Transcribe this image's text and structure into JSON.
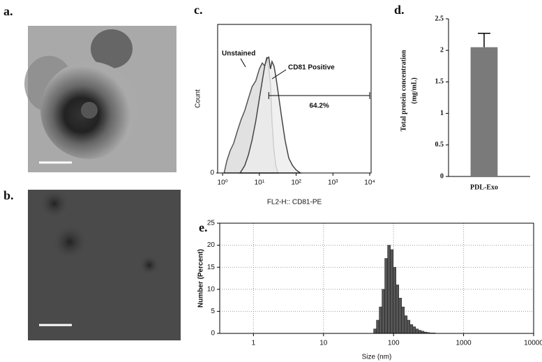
{
  "panel_labels": [
    "a.",
    "b.",
    "c.",
    "d.",
    "e."
  ],
  "chart_data": [
    {
      "type": "line",
      "xscale": "log",
      "xlabel": "FL2-H:: CD81-PE",
      "ylabel": "Count",
      "xlim": [
        0.8,
        10000
      ],
      "xticks": [
        {
          "value": 1,
          "label": "10⁰"
        },
        {
          "value": 10,
          "label": "10¹"
        },
        {
          "value": 100,
          "label": "10²"
        },
        {
          "value": 1000,
          "label": "10³"
        },
        {
          "value": 10000,
          "label": "10⁴"
        }
      ],
      "ylim": [
        0,
        100
      ],
      "yticks": [
        0
      ],
      "series": [
        {
          "name": "Unstained",
          "color": "#555555",
          "fill": "#d9d9d9",
          "x": [
            1.1,
            1.3,
            1.6,
            2,
            2.5,
            3.2,
            4,
            5,
            6.3,
            8,
            10,
            12,
            14,
            16,
            18,
            20,
            22,
            25,
            28,
            32
          ],
          "values": [
            0,
            8,
            15,
            20,
            28,
            36,
            42,
            50,
            58,
            62,
            70,
            74,
            72,
            78,
            70,
            60,
            35,
            15,
            5,
            0
          ]
        },
        {
          "name": "CD81 Positive",
          "color": "#444444",
          "fill": "#ececec",
          "x": [
            3,
            4,
            5,
            6.3,
            8,
            10,
            12,
            14,
            16,
            18,
            20,
            22,
            25,
            28,
            32,
            40,
            50,
            63,
            80,
            100,
            130
          ],
          "values": [
            0,
            5,
            12,
            22,
            35,
            50,
            62,
            72,
            77,
            78,
            70,
            75,
            72,
            65,
            55,
            38,
            22,
            10,
            5,
            2,
            0
          ]
        }
      ],
      "gate": {
        "label": "64.2%",
        "range": [
          18,
          10000
        ]
      }
    },
    {
      "type": "bar",
      "ylabel": [
        "Total protein concentration",
        "(mg/mL)"
      ],
      "categories": [
        "PDL-Exo"
      ],
      "values": [
        2.05
      ],
      "errors": [
        0.22
      ],
      "color": "#7a7a7a",
      "ylim": [
        0,
        2.5
      ],
      "yticks": [
        0,
        0.5,
        1,
        1.5,
        2,
        2.5
      ]
    },
    {
      "type": "histogram",
      "xscale": "log",
      "xlabel": "Size (nm)",
      "ylabel": "Number (Percent)",
      "xlim": [
        0.33,
        10000
      ],
      "xticks": [
        1,
        10,
        100,
        1000,
        10000
      ],
      "ylim": [
        0,
        25
      ],
      "yticks": [
        0,
        5,
        10,
        15,
        20,
        25
      ],
      "grid": true,
      "color": "#555555",
      "bins": [
        52,
        57,
        62.5,
        68.5,
        75,
        82.3,
        90.2,
        98.9,
        108.4,
        118.9,
        130.3,
        142.9,
        156.7,
        171.8,
        188.4,
        206.5,
        226.5,
        248.3,
        272.3,
        298.6,
        327.4,
        359,
        393.7
      ],
      "values": [
        1,
        3,
        6,
        10,
        17,
        20,
        19,
        15,
        11,
        8,
        6,
        4,
        3,
        2,
        1.5,
        1,
        0.7,
        0.5,
        0.3,
        0.2,
        0.1,
        0.1
      ]
    }
  ]
}
